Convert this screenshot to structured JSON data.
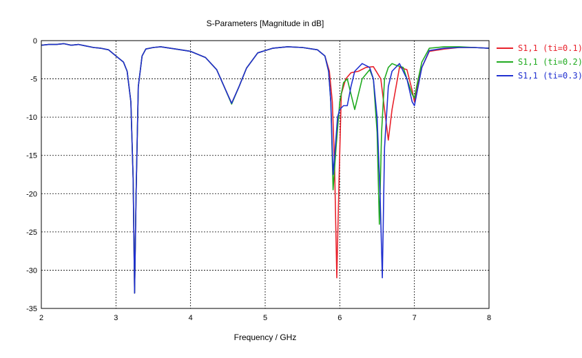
{
  "chart_data": {
    "type": "line",
    "title": "S-Parameters [Magnitude in dB]",
    "xlabel": "Frequency / GHz",
    "ylabel": "",
    "xlim": [
      2,
      8
    ],
    "ylim": [
      -35,
      0
    ],
    "xticks": [
      "2",
      "3",
      "4",
      "5",
      "6",
      "7",
      "8"
    ],
    "yticks": [
      "0",
      "-5",
      "-10",
      "-15",
      "-20",
      "-25",
      "-30",
      "-35"
    ],
    "grid": true,
    "legend_position": "right",
    "series": [
      {
        "name": "S1,1 (ti=0.1)",
        "color": "#e8202a",
        "x": [
          2.0,
          2.1,
          2.2,
          2.3,
          2.4,
          2.5,
          2.6,
          2.7,
          2.8,
          2.9,
          3.0,
          3.1,
          3.15,
          3.2,
          3.23,
          3.25,
          3.27,
          3.3,
          3.35,
          3.4,
          3.5,
          3.6,
          3.8,
          4.0,
          4.2,
          4.35,
          4.45,
          4.55,
          4.65,
          4.75,
          4.9,
          5.1,
          5.3,
          5.5,
          5.7,
          5.8,
          5.86,
          5.9,
          5.93,
          5.96,
          5.99,
          6.02,
          6.08,
          6.15,
          6.25,
          6.35,
          6.45,
          6.55,
          6.6,
          6.65,
          6.7,
          6.8,
          6.9,
          6.97,
          7.0,
          7.03,
          7.1,
          7.2,
          7.4,
          7.6,
          7.8,
          8.0
        ],
        "y": [
          -0.6,
          -0.5,
          -0.5,
          -0.4,
          -0.6,
          -0.5,
          -0.7,
          -0.9,
          -1.0,
          -1.2,
          -2.0,
          -2.8,
          -4.0,
          -8.0,
          -18.0,
          -33.0,
          -20.0,
          -6.0,
          -2.0,
          -1.1,
          -0.9,
          -0.8,
          -1.1,
          -1.4,
          -2.2,
          -3.8,
          -6.0,
          -8.2,
          -6.0,
          -3.6,
          -1.6,
          -1.0,
          -0.8,
          -0.9,
          -1.2,
          -2.0,
          -4.0,
          -8.0,
          -16.0,
          -31.0,
          -18.0,
          -7.0,
          -5.0,
          -4.2,
          -4.0,
          -3.5,
          -3.4,
          -5.0,
          -9.0,
          -13.0,
          -9.0,
          -3.5,
          -3.8,
          -6.5,
          -8.0,
          -6.5,
          -3.5,
          -1.4,
          -1.1,
          -0.9,
          -0.9,
          -1.0
        ]
      },
      {
        "name": "S1,1 (ti=0.2)",
        "color": "#1faa1f",
        "x": [
          2.0,
          2.1,
          2.2,
          2.3,
          2.4,
          2.5,
          2.6,
          2.7,
          2.8,
          2.9,
          3.0,
          3.1,
          3.15,
          3.2,
          3.23,
          3.25,
          3.27,
          3.3,
          3.35,
          3.4,
          3.5,
          3.6,
          3.8,
          4.0,
          4.2,
          4.35,
          4.45,
          4.55,
          4.65,
          4.75,
          4.9,
          5.1,
          5.3,
          5.5,
          5.7,
          5.8,
          5.85,
          5.88,
          5.91,
          5.95,
          6.0,
          6.05,
          6.1,
          6.15,
          6.2,
          6.3,
          6.4,
          6.45,
          6.5,
          6.53,
          6.56,
          6.6,
          6.65,
          6.7,
          6.75,
          6.85,
          6.9,
          6.97,
          7.0,
          7.03,
          7.1,
          7.2,
          7.4,
          7.6,
          7.8,
          8.0
        ],
        "y": [
          -0.6,
          -0.5,
          -0.5,
          -0.4,
          -0.6,
          -0.5,
          -0.7,
          -0.9,
          -1.0,
          -1.2,
          -2.0,
          -2.8,
          -4.0,
          -8.0,
          -18.0,
          -33.0,
          -20.0,
          -6.0,
          -2.0,
          -1.1,
          -0.9,
          -0.8,
          -1.1,
          -1.4,
          -2.2,
          -3.8,
          -6.0,
          -8.3,
          -6.0,
          -3.6,
          -1.6,
          -1.0,
          -0.8,
          -0.9,
          -1.2,
          -2.0,
          -4.0,
          -8.0,
          -19.5,
          -14.0,
          -8.0,
          -5.5,
          -5.0,
          -7.0,
          -9.0,
          -5.0,
          -3.8,
          -5.0,
          -12.0,
          -24.0,
          -12.0,
          -5.0,
          -3.5,
          -3.0,
          -3.2,
          -3.5,
          -5.0,
          -7.0,
          -7.5,
          -6.0,
          -2.8,
          -1.0,
          -0.8,
          -0.8,
          -0.9,
          -1.0
        ]
      },
      {
        "name": "S1,1 (ti=0.3)",
        "color": "#1f2fd0",
        "x": [
          2.0,
          2.1,
          2.2,
          2.3,
          2.4,
          2.5,
          2.6,
          2.7,
          2.8,
          2.9,
          3.0,
          3.1,
          3.15,
          3.2,
          3.23,
          3.25,
          3.27,
          3.3,
          3.35,
          3.4,
          3.5,
          3.6,
          3.8,
          4.0,
          4.2,
          4.35,
          4.45,
          4.55,
          4.65,
          4.75,
          4.9,
          5.1,
          5.3,
          5.5,
          5.7,
          5.8,
          5.85,
          5.88,
          5.91,
          5.94,
          5.97,
          6.0,
          6.05,
          6.1,
          6.15,
          6.2,
          6.3,
          6.4,
          6.45,
          6.5,
          6.54,
          6.57,
          6.6,
          6.65,
          6.7,
          6.8,
          6.9,
          6.97,
          7.0,
          7.03,
          7.1,
          7.2,
          7.4,
          7.6,
          7.8,
          8.0
        ],
        "y": [
          -0.6,
          -0.5,
          -0.5,
          -0.4,
          -0.6,
          -0.5,
          -0.7,
          -0.9,
          -1.0,
          -1.2,
          -2.0,
          -2.8,
          -4.0,
          -8.0,
          -18.0,
          -33.0,
          -20.0,
          -6.0,
          -2.0,
          -1.1,
          -0.9,
          -0.8,
          -1.1,
          -1.4,
          -2.2,
          -3.8,
          -6.0,
          -8.2,
          -6.0,
          -3.6,
          -1.6,
          -1.0,
          -0.8,
          -0.9,
          -1.2,
          -2.0,
          -4.0,
          -8.0,
          -17.5,
          -14.0,
          -10.0,
          -9.0,
          -8.5,
          -8.5,
          -6.0,
          -4.0,
          -3.0,
          -3.5,
          -5.0,
          -10.0,
          -20.0,
          -31.0,
          -14.0,
          -6.0,
          -4.0,
          -3.0,
          -5.0,
          -8.0,
          -8.5,
          -7.0,
          -3.5,
          -1.3,
          -1.0,
          -0.9,
          -0.9,
          -1.0
        ]
      }
    ]
  }
}
